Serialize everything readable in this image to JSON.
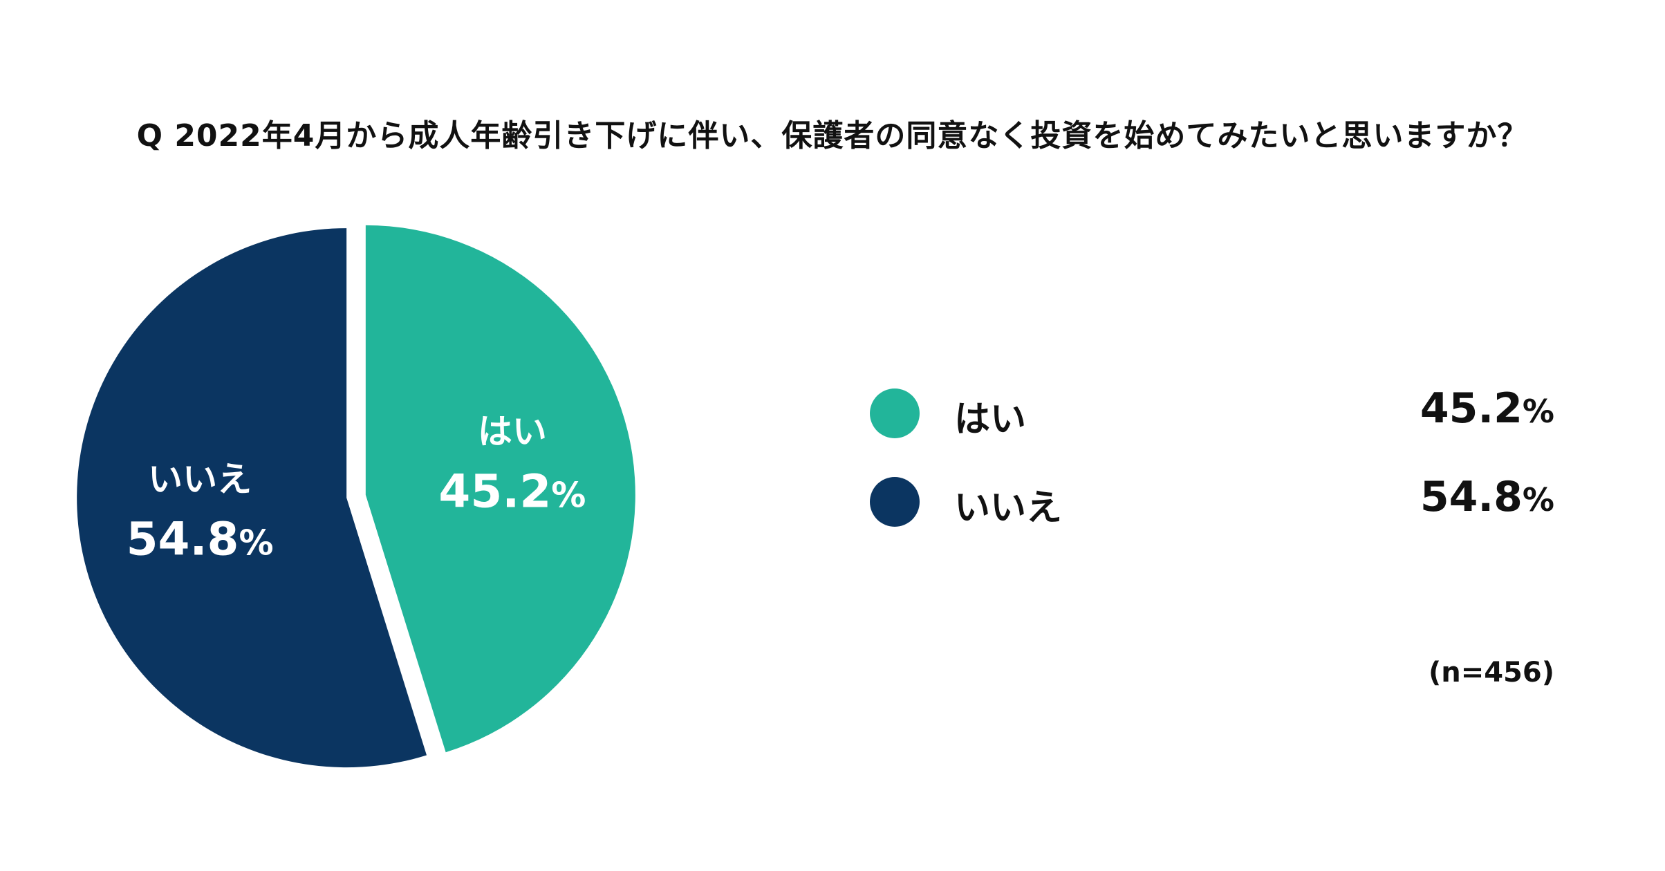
{
  "title": "Q 2022年4月から成人年齢引き下げに伴い、保護者の同意なく投資を始めてみたいと思いますか？",
  "chart_data": {
    "type": "pie",
    "categories": [
      "はい",
      "いいえ"
    ],
    "values": [
      45.2,
      54.8
    ],
    "value_display": [
      "45.2",
      "54.8"
    ],
    "unit": "%",
    "colors": [
      "#22b59a",
      "#0b3561"
    ],
    "legend_placement": "right",
    "sample_size": "(n=456)"
  },
  "legend": [
    {
      "label": "はい",
      "value": "45.2",
      "unit": "%",
      "color": "#22b59a"
    },
    {
      "label": "いいえ",
      "value": "54.8",
      "unit": "%",
      "color": "#0b3561"
    }
  ]
}
